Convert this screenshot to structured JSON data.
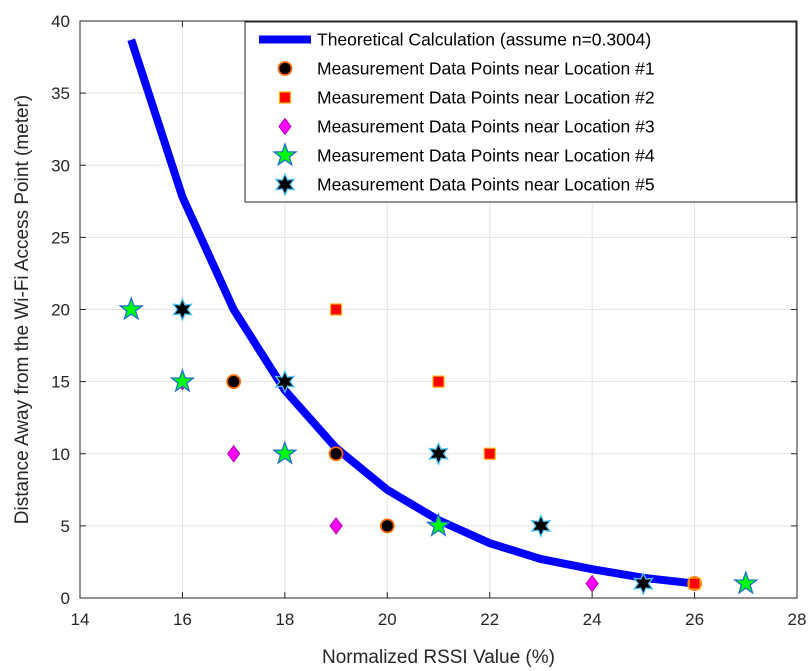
{
  "chart_data": {
    "type": "scatter",
    "xlabel": "Normalized RSSI Value (%)",
    "ylabel": "Distance Away from the Wi-Fi Access Point (meter)",
    "xlim": [
      14,
      28
    ],
    "ylim": [
      0,
      40
    ],
    "xticks": [
      14,
      16,
      18,
      20,
      22,
      24,
      26,
      28
    ],
    "yticks": [
      0,
      5,
      10,
      15,
      20,
      25,
      30,
      35,
      40
    ],
    "grid": true,
    "legend_position": "top-right",
    "line": {
      "name": "Theoretical Calculation (assume n=0.3004)",
      "color": "#0000ff",
      "x": [
        15,
        16,
        17,
        18,
        19,
        20,
        21,
        22,
        23,
        24,
        25,
        26
      ],
      "y": [
        38.7,
        27.8,
        20.0,
        14.4,
        10.4,
        7.5,
        5.4,
        3.8,
        2.7,
        2.0,
        1.4,
        1.0
      ]
    },
    "series": [
      {
        "name": "Measurement Data Points near Location #1",
        "marker": "circle",
        "fill": "#000000",
        "stroke": "#ff6600",
        "x": [
          17,
          19,
          20,
          26
        ],
        "y": [
          15,
          10,
          5,
          1
        ]
      },
      {
        "name": "Measurement Data Points near Location #2",
        "marker": "square",
        "fill": "#ff0000",
        "stroke": "#ffb000",
        "x": [
          19,
          21,
          22,
          26
        ],
        "y": [
          20,
          15,
          10,
          1
        ]
      },
      {
        "name": "Measurement Data Points near Location #3",
        "marker": "diamond",
        "fill": "#ff00ff",
        "stroke": "#b000b0",
        "x": [
          16,
          17,
          19,
          24
        ],
        "y": [
          15,
          10,
          5,
          1
        ]
      },
      {
        "name": "Measurement Data Points near Location #4",
        "marker": "star5",
        "fill": "#00ff00",
        "stroke": "#1f6fd0",
        "x": [
          15,
          16,
          18,
          21,
          27
        ],
        "y": [
          20,
          15,
          10,
          5,
          1
        ]
      },
      {
        "name": "Measurement Data Points near Location #5",
        "marker": "star6",
        "fill": "#000000",
        "stroke": "#4fc3f7",
        "x": [
          16,
          18,
          21,
          23,
          25
        ],
        "y": [
          20,
          15,
          10,
          5,
          1
        ]
      }
    ]
  }
}
